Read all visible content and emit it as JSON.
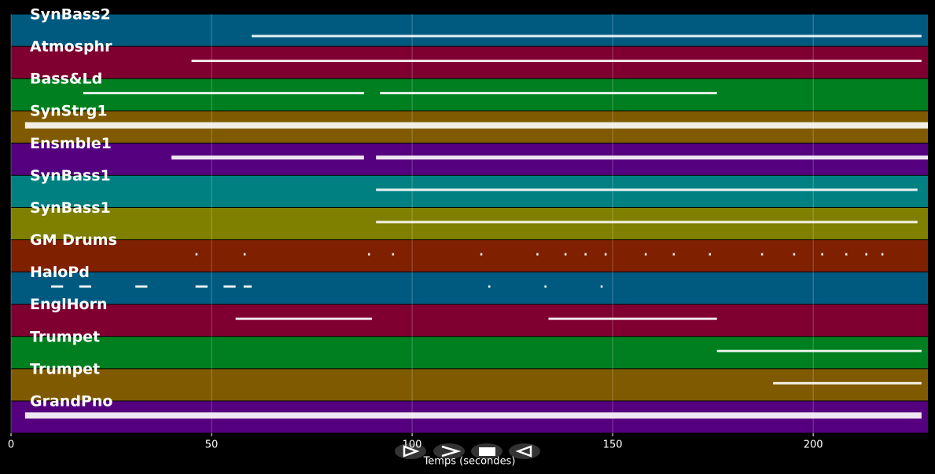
{
  "chart_data": {
    "type": "timeline",
    "xlabel": "Temps (secondes)",
    "xlim": [
      0,
      228.6
    ],
    "xticks": [
      0,
      50,
      100,
      150,
      200
    ],
    "grid": true,
    "note_color": "#ffffff",
    "tracks": [
      {
        "name": "SynBass2",
        "color": "#005a80",
        "notes": [
          [
            60,
            227
          ]
        ]
      },
      {
        "name": "Atmosphr",
        "color": "#7f0030",
        "notes": [
          [
            45,
            227
          ]
        ]
      },
      {
        "name": "Bass&Ld",
        "color": "#007f20",
        "notes": [
          [
            18,
            88
          ],
          [
            92,
            176
          ]
        ]
      },
      {
        "name": "SynStrg1",
        "color": "#7f5a00",
        "notes": [
          [
            3.5,
            228.6
          ]
        ]
      },
      {
        "name": "Ensmble1",
        "color": "#55007f",
        "notes": [
          [
            40,
            88
          ],
          [
            91,
            228.6
          ]
        ]
      },
      {
        "name": "SynBass1",
        "color": "#008080",
        "notes": [
          [
            91,
            226
          ]
        ]
      },
      {
        "name": "SynBass1",
        "color": "#7f7f00",
        "notes": [
          [
            91,
            226
          ]
        ]
      },
      {
        "name": "GM Drums",
        "color": "#7f2000",
        "notes": [
          [
            46,
            46.5
          ],
          [
            58,
            58.5
          ],
          [
            89,
            89.5
          ],
          [
            95,
            95.5
          ],
          [
            117,
            117.5
          ],
          [
            131,
            131.5
          ],
          [
            138,
            138.5
          ],
          [
            143,
            143.5
          ],
          [
            148,
            148.5
          ],
          [
            158,
            158.5
          ],
          [
            165,
            165.5
          ],
          [
            174,
            174.5
          ],
          [
            187,
            187.5
          ],
          [
            195,
            195.5
          ],
          [
            202,
            202.5
          ],
          [
            208,
            208.5
          ],
          [
            213,
            213.5
          ],
          [
            217,
            217.5
          ]
        ]
      },
      {
        "name": "HaloPd",
        "color": "#005a80",
        "notes": [
          [
            10,
            13
          ],
          [
            17,
            20
          ],
          [
            31,
            34
          ],
          [
            46,
            49
          ],
          [
            53,
            56
          ],
          [
            58,
            60
          ],
          [
            119,
            119.5
          ],
          [
            133,
            133.5
          ],
          [
            147,
            147.5
          ]
        ]
      },
      {
        "name": "EnglHorn",
        "color": "#7f0030",
        "notes": [
          [
            56,
            90
          ],
          [
            134,
            176
          ]
        ]
      },
      {
        "name": "Trumpet",
        "color": "#007f20",
        "notes": [
          [
            176,
            227
          ]
        ]
      },
      {
        "name": "Trumpet",
        "color": "#7f5a00",
        "notes": [
          [
            190,
            227
          ]
        ]
      },
      {
        "name": "GrandPno",
        "color": "#55007f",
        "notes": [
          [
            3.5,
            227
          ]
        ]
      }
    ]
  }
}
